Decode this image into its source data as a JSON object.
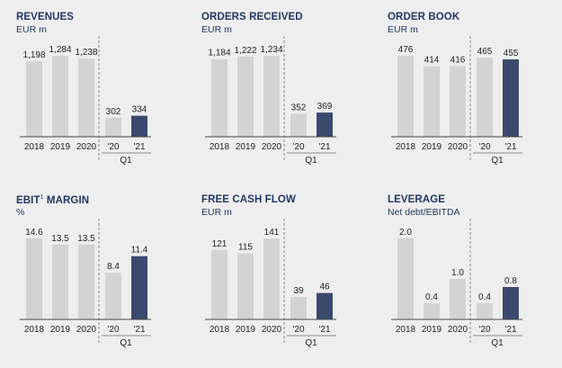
{
  "chart_data": [
    {
      "type": "bar",
      "title": "REVENUES",
      "subtitle": "EUR m",
      "categories": [
        "2018",
        "2019",
        "2020",
        "'20",
        "'21"
      ],
      "quarter_label": "Q1",
      "values": [
        1198,
        1284,
        1238,
        302,
        334
      ],
      "value_labels": [
        "1,198",
        "1,284",
        "1,238",
        "302",
        "334"
      ],
      "highlight_index": 4
    },
    {
      "type": "bar",
      "title": "ORDERS RECEIVED",
      "subtitle": "EUR m",
      "categories": [
        "2018",
        "2019",
        "2020",
        "'20",
        "'21"
      ],
      "quarter_label": "Q1",
      "values": [
        1184,
        1222,
        1234,
        352,
        369
      ],
      "value_labels": [
        "1,184",
        "1,222",
        "1,234",
        "352",
        "369"
      ],
      "highlight_index": 4
    },
    {
      "type": "bar",
      "title": "ORDER BOOK",
      "subtitle": "EUR m",
      "categories": [
        "2018",
        "2019",
        "2020",
        "'20",
        "'21"
      ],
      "quarter_label": "Q1",
      "values": [
        476,
        414,
        416,
        465,
        455
      ],
      "value_labels": [
        "476",
        "414",
        "416",
        "465",
        "455"
      ],
      "highlight_index": 4
    },
    {
      "type": "bar",
      "title": "EBIT",
      "title_superscript": "1",
      "title_suffix": " MARGIN",
      "subtitle": "%",
      "categories": [
        "2018",
        "2019",
        "2020",
        "'20",
        "'21"
      ],
      "quarter_label": "Q1",
      "values": [
        14.6,
        13.5,
        13.5,
        8.4,
        11.4
      ],
      "value_labels": [
        "14.6",
        "13.5",
        "13.5",
        "8.4",
        "11.4"
      ],
      "highlight_index": 4
    },
    {
      "type": "bar",
      "title": "FREE CASH FLOW",
      "subtitle": "EUR m",
      "categories": [
        "2018",
        "2019",
        "2020",
        "'20",
        "'21"
      ],
      "quarter_label": "Q1",
      "values": [
        121,
        115,
        141,
        39,
        46
      ],
      "value_labels": [
        "121",
        "115",
        "141",
        "39",
        "46"
      ],
      "highlight_index": 4
    },
    {
      "type": "bar",
      "title": "LEVERAGE",
      "subtitle": "Net debt/EBITDA",
      "categories": [
        "2018",
        "2019",
        "2020",
        "'20",
        "'21"
      ],
      "quarter_label": "Q1",
      "values": [
        2.0,
        0.4,
        1.0,
        0.4,
        0.8
      ],
      "value_labels": [
        "2.0",
        "0.4",
        "1.0",
        "0.4",
        "0.8"
      ],
      "highlight_index": 4
    }
  ],
  "colors": {
    "background": "#eeeeee",
    "bar": "#d3d3d3",
    "highlight": "#3a4a6e",
    "title": "#1f3864",
    "text": "#222222",
    "axis": "#444444",
    "divider": "#8a8a8a"
  }
}
